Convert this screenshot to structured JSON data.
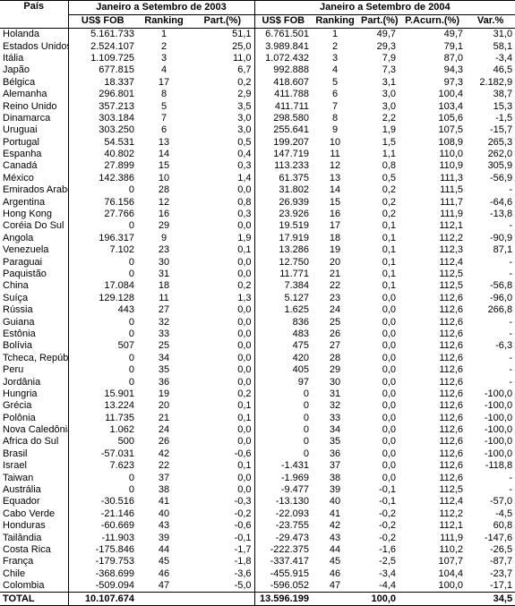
{
  "header": {
    "country": "País",
    "groups": [
      "Janeiro a Setembro de 2003",
      "Janeiro a Setembro de 2004"
    ],
    "columns_2003": [
      "US$ FOB",
      "Ranking",
      "Part.(%)"
    ],
    "columns_2004": [
      "US$ FOB",
      "Ranking",
      "Part.(%)",
      "P.Acurn.(%)",
      "Var.%"
    ]
  },
  "rows": [
    [
      "Holanda",
      "5.161.733",
      "1",
      "51,1",
      "6.761.501",
      "1",
      "49,7",
      "49,7",
      "31,0"
    ],
    [
      "Estados Unidos",
      "2.524.107",
      "2",
      "25,0",
      "3.989.841",
      "2",
      "29,3",
      "79,1",
      "58,1"
    ],
    [
      "Itália",
      "1.109.725",
      "3",
      "11,0",
      "1.072.432",
      "3",
      "7,9",
      "87,0",
      "-3,4"
    ],
    [
      "Japão",
      "677.815",
      "4",
      "6,7",
      "992.888",
      "4",
      "7,3",
      "94,3",
      "46,5"
    ],
    [
      "Bélgica",
      "18.337",
      "17",
      "0,2",
      "418.607",
      "5",
      "3,1",
      "97,3",
      "2.182,9"
    ],
    [
      "Alemanha",
      "296.801",
      "8",
      "2,9",
      "411.788",
      "6",
      "3,0",
      "100,4",
      "38,7"
    ],
    [
      "Reino Unido",
      "357.213",
      "5",
      "3,5",
      "411.711",
      "7",
      "3,0",
      "103,4",
      "15,3"
    ],
    [
      "Dinamarca",
      "303.184",
      "7",
      "3,0",
      "298.580",
      "8",
      "2,2",
      "105,6",
      "-1,5"
    ],
    [
      "Uruguai",
      "303.250",
      "6",
      "3,0",
      "255.641",
      "9",
      "1,9",
      "107,5",
      "-15,7"
    ],
    [
      "Portugal",
      "54.531",
      "13",
      "0,5",
      "199.207",
      "10",
      "1,5",
      "108,9",
      "265,3"
    ],
    [
      "Espanha",
      "40.802",
      "14",
      "0,4",
      "147.719",
      "11",
      "1,1",
      "110,0",
      "262,0"
    ],
    [
      "Canadá",
      "27.899",
      "15",
      "0,3",
      "113.233",
      "12",
      "0,8",
      "110,9",
      "305,9"
    ],
    [
      "México",
      "142.386",
      "10",
      "1,4",
      "61.375",
      "13",
      "0,5",
      "111,3",
      "-56,9"
    ],
    [
      "Emirados Arabes",
      "0",
      "28",
      "0,0",
      "31.802",
      "14",
      "0,2",
      "111,5",
      "-"
    ],
    [
      "Argentina",
      "76.156",
      "12",
      "0,8",
      "26.939",
      "15",
      "0,2",
      "111,7",
      "-64,6"
    ],
    [
      "Hong Kong",
      "27.766",
      "16",
      "0,3",
      "23.926",
      "16",
      "0,2",
      "111,9",
      "-13,8"
    ],
    [
      "Coréia Do Sul",
      "0",
      "29",
      "0,0",
      "19.519",
      "17",
      "0,1",
      "112,1",
      "-"
    ],
    [
      "Angola",
      "196.317",
      "9",
      "1,9",
      "17.919",
      "18",
      "0,1",
      "112,2",
      "-90,9"
    ],
    [
      "Venezuela",
      "7.102",
      "23",
      "0,1",
      "13.286",
      "19",
      "0,1",
      "112,3",
      "87,1"
    ],
    [
      "Paraguai",
      "0",
      "30",
      "0,0",
      "12.750",
      "20",
      "0,1",
      "112,4",
      "-"
    ],
    [
      "Paquistão",
      "0",
      "31",
      "0,0",
      "11.771",
      "21",
      "0,1",
      "112,5",
      "-"
    ],
    [
      "China",
      "17.084",
      "18",
      "0,2",
      "7.384",
      "22",
      "0,1",
      "112,5",
      "-56,8"
    ],
    [
      "Suíça",
      "129.128",
      "11",
      "1,3",
      "5.127",
      "23",
      "0,0",
      "112,6",
      "-96,0"
    ],
    [
      "Rússia",
      "443",
      "27",
      "0,0",
      "1.625",
      "24",
      "0,0",
      "112,6",
      "266,8"
    ],
    [
      "Guiana",
      "0",
      "32",
      "0,0",
      "836",
      "25",
      "0,0",
      "112,6",
      "-"
    ],
    [
      "Estônia",
      "0",
      "33",
      "0,0",
      "483",
      "26",
      "0,0",
      "112,6",
      "-"
    ],
    [
      "Bolívia",
      "507",
      "25",
      "0,0",
      "475",
      "27",
      "0,0",
      "112,6",
      "-6,3"
    ],
    [
      "Tcheca, República",
      "0",
      "34",
      "0,0",
      "420",
      "28",
      "0,0",
      "112,6",
      "-"
    ],
    [
      "Peru",
      "0",
      "35",
      "0,0",
      "405",
      "29",
      "0,0",
      "112,6",
      "-"
    ],
    [
      "Jordânia",
      "0",
      "36",
      "0,0",
      "97",
      "30",
      "0,0",
      "112,6",
      "-"
    ],
    [
      "Hungria",
      "15.901",
      "19",
      "0,2",
      "0",
      "31",
      "0,0",
      "112,6",
      "-100,0"
    ],
    [
      "Grécia",
      "13.224",
      "20",
      "0,1",
      "0",
      "32",
      "0,0",
      "112,6",
      "-100,0"
    ],
    [
      "Polônia",
      "11.735",
      "21",
      "0,1",
      "0",
      "33",
      "0,0",
      "112,6",
      "-100,0"
    ],
    [
      "Nova Caledônia",
      "1.062",
      "24",
      "0,0",
      "0",
      "34",
      "0,0",
      "112,6",
      "-100,0"
    ],
    [
      "Africa do Sul",
      "500",
      "26",
      "0,0",
      "0",
      "35",
      "0,0",
      "112,6",
      "-100,0"
    ],
    [
      "Brasil",
      "-57.031",
      "42",
      "-0,6",
      "0",
      "36",
      "0,0",
      "112,6",
      "-100,0"
    ],
    [
      "Israel",
      "7.623",
      "22",
      "0,1",
      "-1.431",
      "37",
      "0,0",
      "112,6",
      "-118,8"
    ],
    [
      "Taiwan",
      "0",
      "37",
      "0,0",
      "-1.969",
      "38",
      "0,0",
      "112,6",
      "-"
    ],
    [
      "Austrália",
      "0",
      "38",
      "0,0",
      "-9.477",
      "39",
      "-0,1",
      "112,5",
      "-"
    ],
    [
      "Equador",
      "-30.516",
      "41",
      "-0,3",
      "-13.130",
      "40",
      "-0,1",
      "112,4",
      "-57,0"
    ],
    [
      "Cabo Verde",
      "-21.146",
      "40",
      "-0,2",
      "-22.093",
      "41",
      "-0,2",
      "112,2",
      "-4,5"
    ],
    [
      "Honduras",
      "-60.669",
      "43",
      "-0,6",
      "-23.755",
      "42",
      "-0,2",
      "112,1",
      "60,8"
    ],
    [
      "Tailândia",
      "-11.903",
      "39",
      "-0,1",
      "-29.473",
      "43",
      "-0,2",
      "111,9",
      "-147,6"
    ],
    [
      "Costa Rica",
      "-175.846",
      "44",
      "-1,7",
      "-222.375",
      "44",
      "-1,6",
      "110,2",
      "-26,5"
    ],
    [
      "França",
      "-179.753",
      "45",
      "-1,8",
      "-337.417",
      "45",
      "-2,5",
      "107,7",
      "-87,7"
    ],
    [
      "Chile",
      "-368.699",
      "46",
      "-3,6",
      "-455.915",
      "46",
      "-3,4",
      "104,4",
      "-23,7"
    ],
    [
      "Colombia",
      "-509.094",
      "47",
      "-5,0",
      "-596.052",
      "47",
      "-4,4",
      "100,0",
      "-17,1"
    ]
  ],
  "total": {
    "label": "TOTAL",
    "fob_2003": "10.107.674",
    "fob_2004": "13.596.199",
    "part_2004": "100,0",
    "var": "34,5"
  }
}
